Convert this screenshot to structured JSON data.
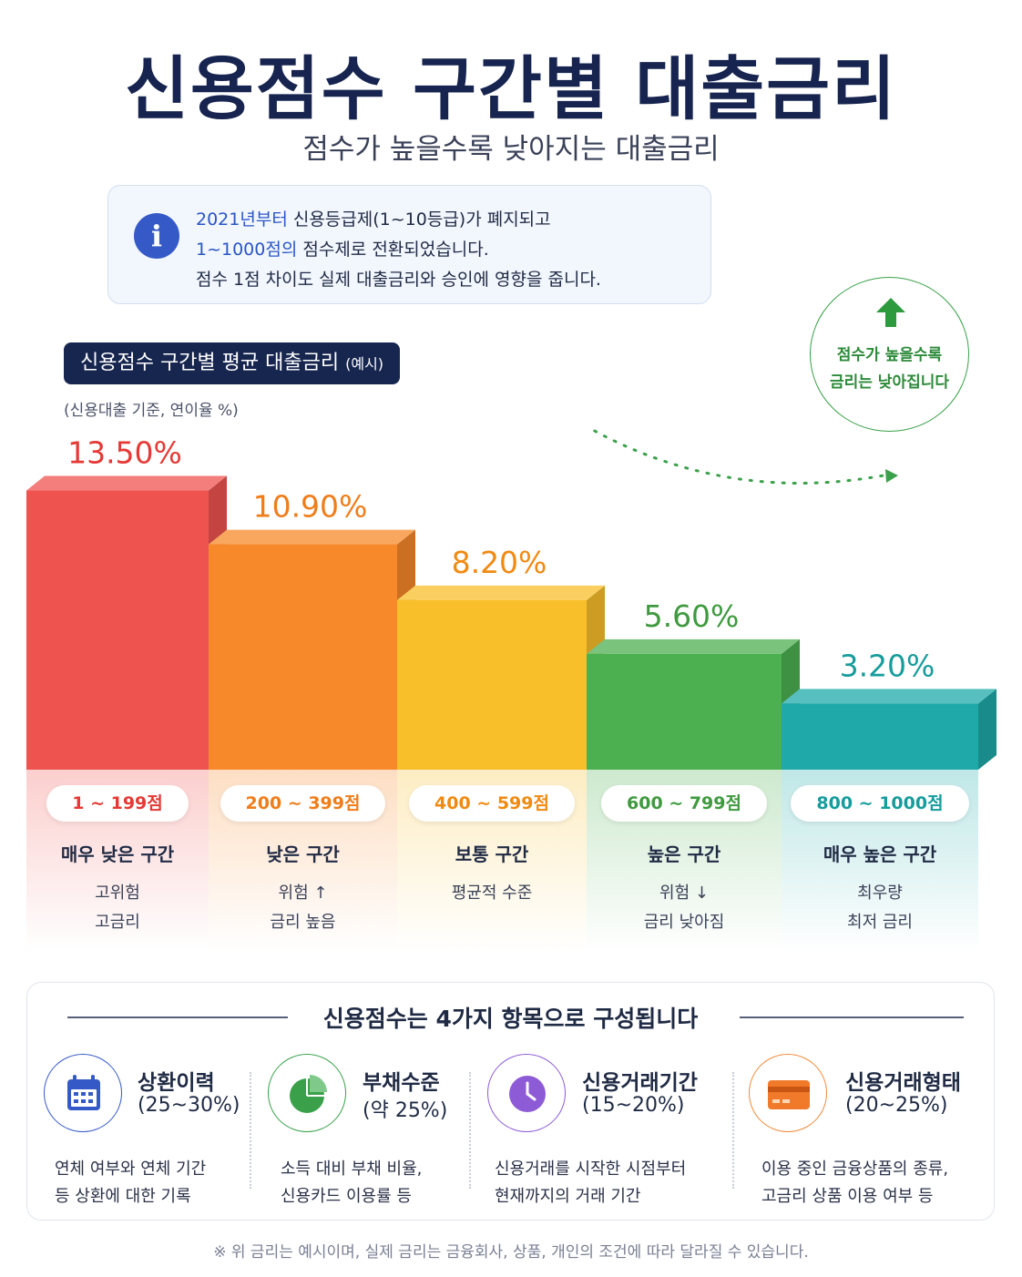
{
  "header": {
    "title": "신용점수 구간별 대출금리",
    "subtitle": "점수가 높을수록 낮아지는 대출금리"
  },
  "info": {
    "line1_hl": "2021년부터",
    "line1_rest": " 신용등급제(1~10등급)가 폐지되고",
    "line2_hl": "1~1000점의",
    "line2_rest": " 점수제로 전환되었습니다.",
    "line3": "점수 1점 차이도 실제 대출금리와 승인에 영향을 줍니다."
  },
  "section": {
    "badge": "신용점수 구간별 평균 대출금리",
    "badge_small": "(예시)",
    "note": "(신용대출 기준, 연이율 %)"
  },
  "callout": {
    "line1": "점수가 높을수록",
    "line2": "금리는 낮아집니다"
  },
  "chart_data": {
    "type": "bar",
    "title": "신용점수 구간별 평균 대출금리",
    "categories": [
      "1 ~ 199점",
      "200 ~ 399점",
      "400 ~ 599점",
      "600 ~ 799점",
      "800 ~ 1000점"
    ],
    "values": [
      13.5,
      10.9,
      8.2,
      5.6,
      3.2
    ],
    "value_labels": [
      "13.50%",
      "10.90%",
      "8.20%",
      "5.60%",
      "3.20%"
    ],
    "unit": "%",
    "colors": [
      "#ef5350",
      "#f7892a",
      "#f9bf2a",
      "#4caf50",
      "#1fa9a9"
    ],
    "label_colors": [
      "#e53935",
      "#ef7d1a",
      "#f08a12",
      "#3f9a3f",
      "#179c9c"
    ],
    "levels": [
      "매우 낮은 구간",
      "낮은 구간",
      "보통 구간",
      "높은 구간",
      "매우 높은 구간"
    ],
    "descriptions": [
      [
        "고위험",
        "고금리"
      ],
      [
        "위험 ↑",
        "금리 높음"
      ],
      [
        "평균적 수준"
      ],
      [
        "위험 ↓",
        "금리 낮아짐"
      ],
      [
        "최우량",
        "최저 금리"
      ]
    ]
  },
  "components": {
    "title": "신용점수는 4가지 항목으로 구성됩니다",
    "items": [
      {
        "name": "상환이력",
        "pct": "(25~30%)",
        "desc": [
          "연체 여부와 연체 기간",
          "등 상환에 대한 기록"
        ],
        "icon": "calendar-icon",
        "color": "#3559c7"
      },
      {
        "name": "부채수준",
        "pct": "(약 25%)",
        "desc": [
          "소득 대비 부채 비율,",
          "신용카드 이용률 등"
        ],
        "icon": "pie-chart-icon",
        "color": "#3aa14a"
      },
      {
        "name": "신용거래기간",
        "pct": "(15~20%)",
        "desc": [
          "신용거래를 시작한 시점부터",
          "현재까지의 거래 기간"
        ],
        "icon": "clock-icon",
        "color": "#8e5bd6"
      },
      {
        "name": "신용거래형태",
        "pct": "(20~25%)",
        "desc": [
          "이용 중인 금융상품의 종류,",
          "고금리 상품 이용 여부 등"
        ],
        "icon": "credit-card-icon",
        "color": "#f08a3a"
      }
    ]
  },
  "footnote": "※ 위 금리는 예시이며, 실제 금리는 금융회사, 상품, 개인의 조건에 따라 달라질 수 있습니다."
}
